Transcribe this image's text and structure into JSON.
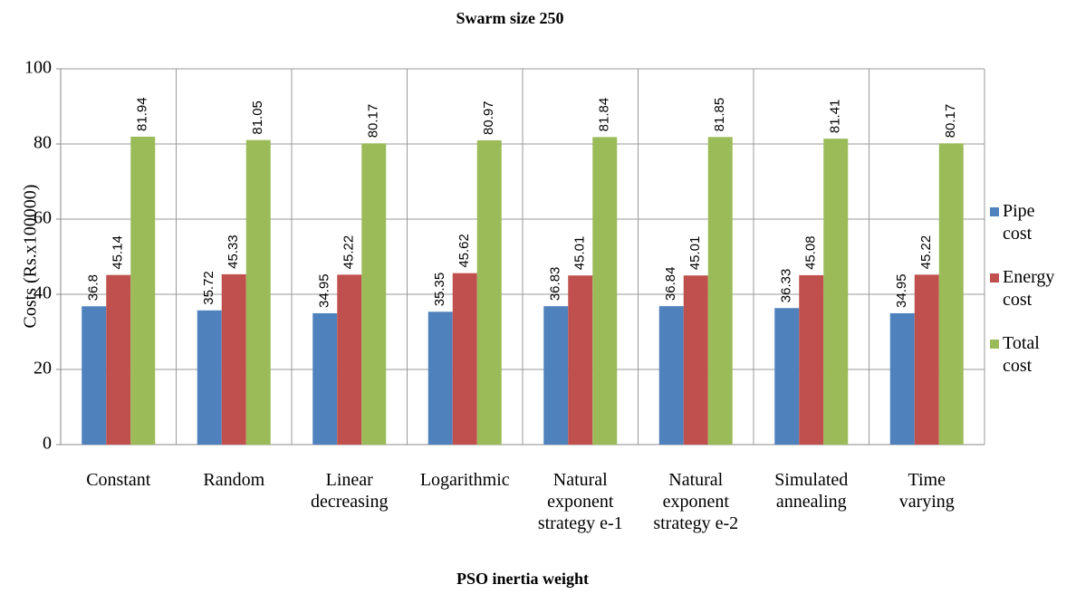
{
  "chart_data": {
    "type": "bar",
    "title": "Swarm size 250",
    "x_label": "PSO inertia weight",
    "y_label": "Costs (Rs.x100000)",
    "categories": [
      "Constant",
      "Random",
      "Linear\ndecreasing",
      "Logarithmic",
      "Natural\nexponent\nstrategy e-1",
      "Natural\nexponent\nstrategy e-2",
      "Simulated\nannealing",
      "Time\nvarying"
    ],
    "series": [
      {
        "name": "Pipe\ncost",
        "color": "#4f81bd",
        "values": [
          36.8,
          35.72,
          34.95,
          35.35,
          36.83,
          36.84,
          36.33,
          34.95
        ]
      },
      {
        "name": "Energy\ncost",
        "color": "#c0504d",
        "values": [
          45.14,
          45.33,
          45.22,
          45.62,
          45.01,
          45.01,
          45.08,
          45.22
        ]
      },
      {
        "name": "Total\ncost",
        "color": "#9bbb59",
        "values": [
          81.94,
          81.05,
          80.17,
          80.97,
          81.84,
          81.85,
          81.41,
          80.17
        ]
      }
    ],
    "ylim": [
      0,
      100
    ],
    "yticks": [
      0,
      20,
      40,
      60,
      80,
      100
    ],
    "grid": true,
    "legend": "right"
  }
}
